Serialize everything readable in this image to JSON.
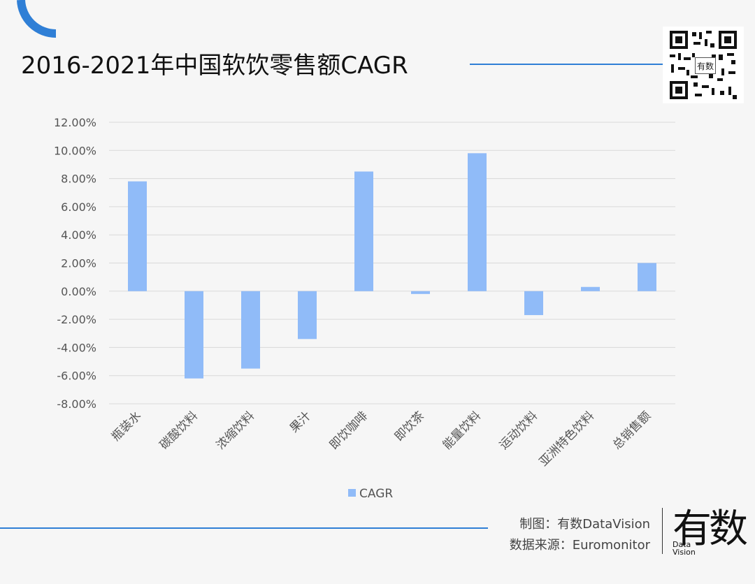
{
  "header": {
    "title": "2016-2021年中国软饮零售额CAGR"
  },
  "qr": {
    "label": "有数"
  },
  "chart_data": {
    "type": "bar",
    "categories": [
      "瓶装水",
      "碳酸饮料",
      "浓缩饮料",
      "果汁",
      "即饮咖啡",
      "即饮茶",
      "能量饮料",
      "运动饮料",
      "亚洲特色饮料",
      "总销售额"
    ],
    "series": [
      {
        "name": "CAGR",
        "values": [
          7.8,
          -6.2,
          -5.5,
          -3.4,
          8.5,
          -0.2,
          9.8,
          -1.7,
          0.3,
          2.0
        ]
      }
    ],
    "y_ticks": [
      "12.00%",
      "10.00%",
      "8.00%",
      "6.00%",
      "4.00%",
      "2.00%",
      "0.00%",
      "-2.00%",
      "-4.00%",
      "-6.00%",
      "-8.00%"
    ],
    "ylim": [
      -8,
      12
    ],
    "y_unit": "%",
    "grid": true,
    "legend_position": "bottom",
    "bar_color": "#90bbf8"
  },
  "footer": {
    "made_by": "制图：有数DataVision",
    "source": "数据来源：Euromonitor",
    "logo_text": "有数",
    "logo_sub_1": "Data",
    "logo_sub_2": "Vision"
  },
  "colors": {
    "accent": "#2f7fd6",
    "bar": "#90bbf8",
    "grid": "#d9d9d9"
  }
}
